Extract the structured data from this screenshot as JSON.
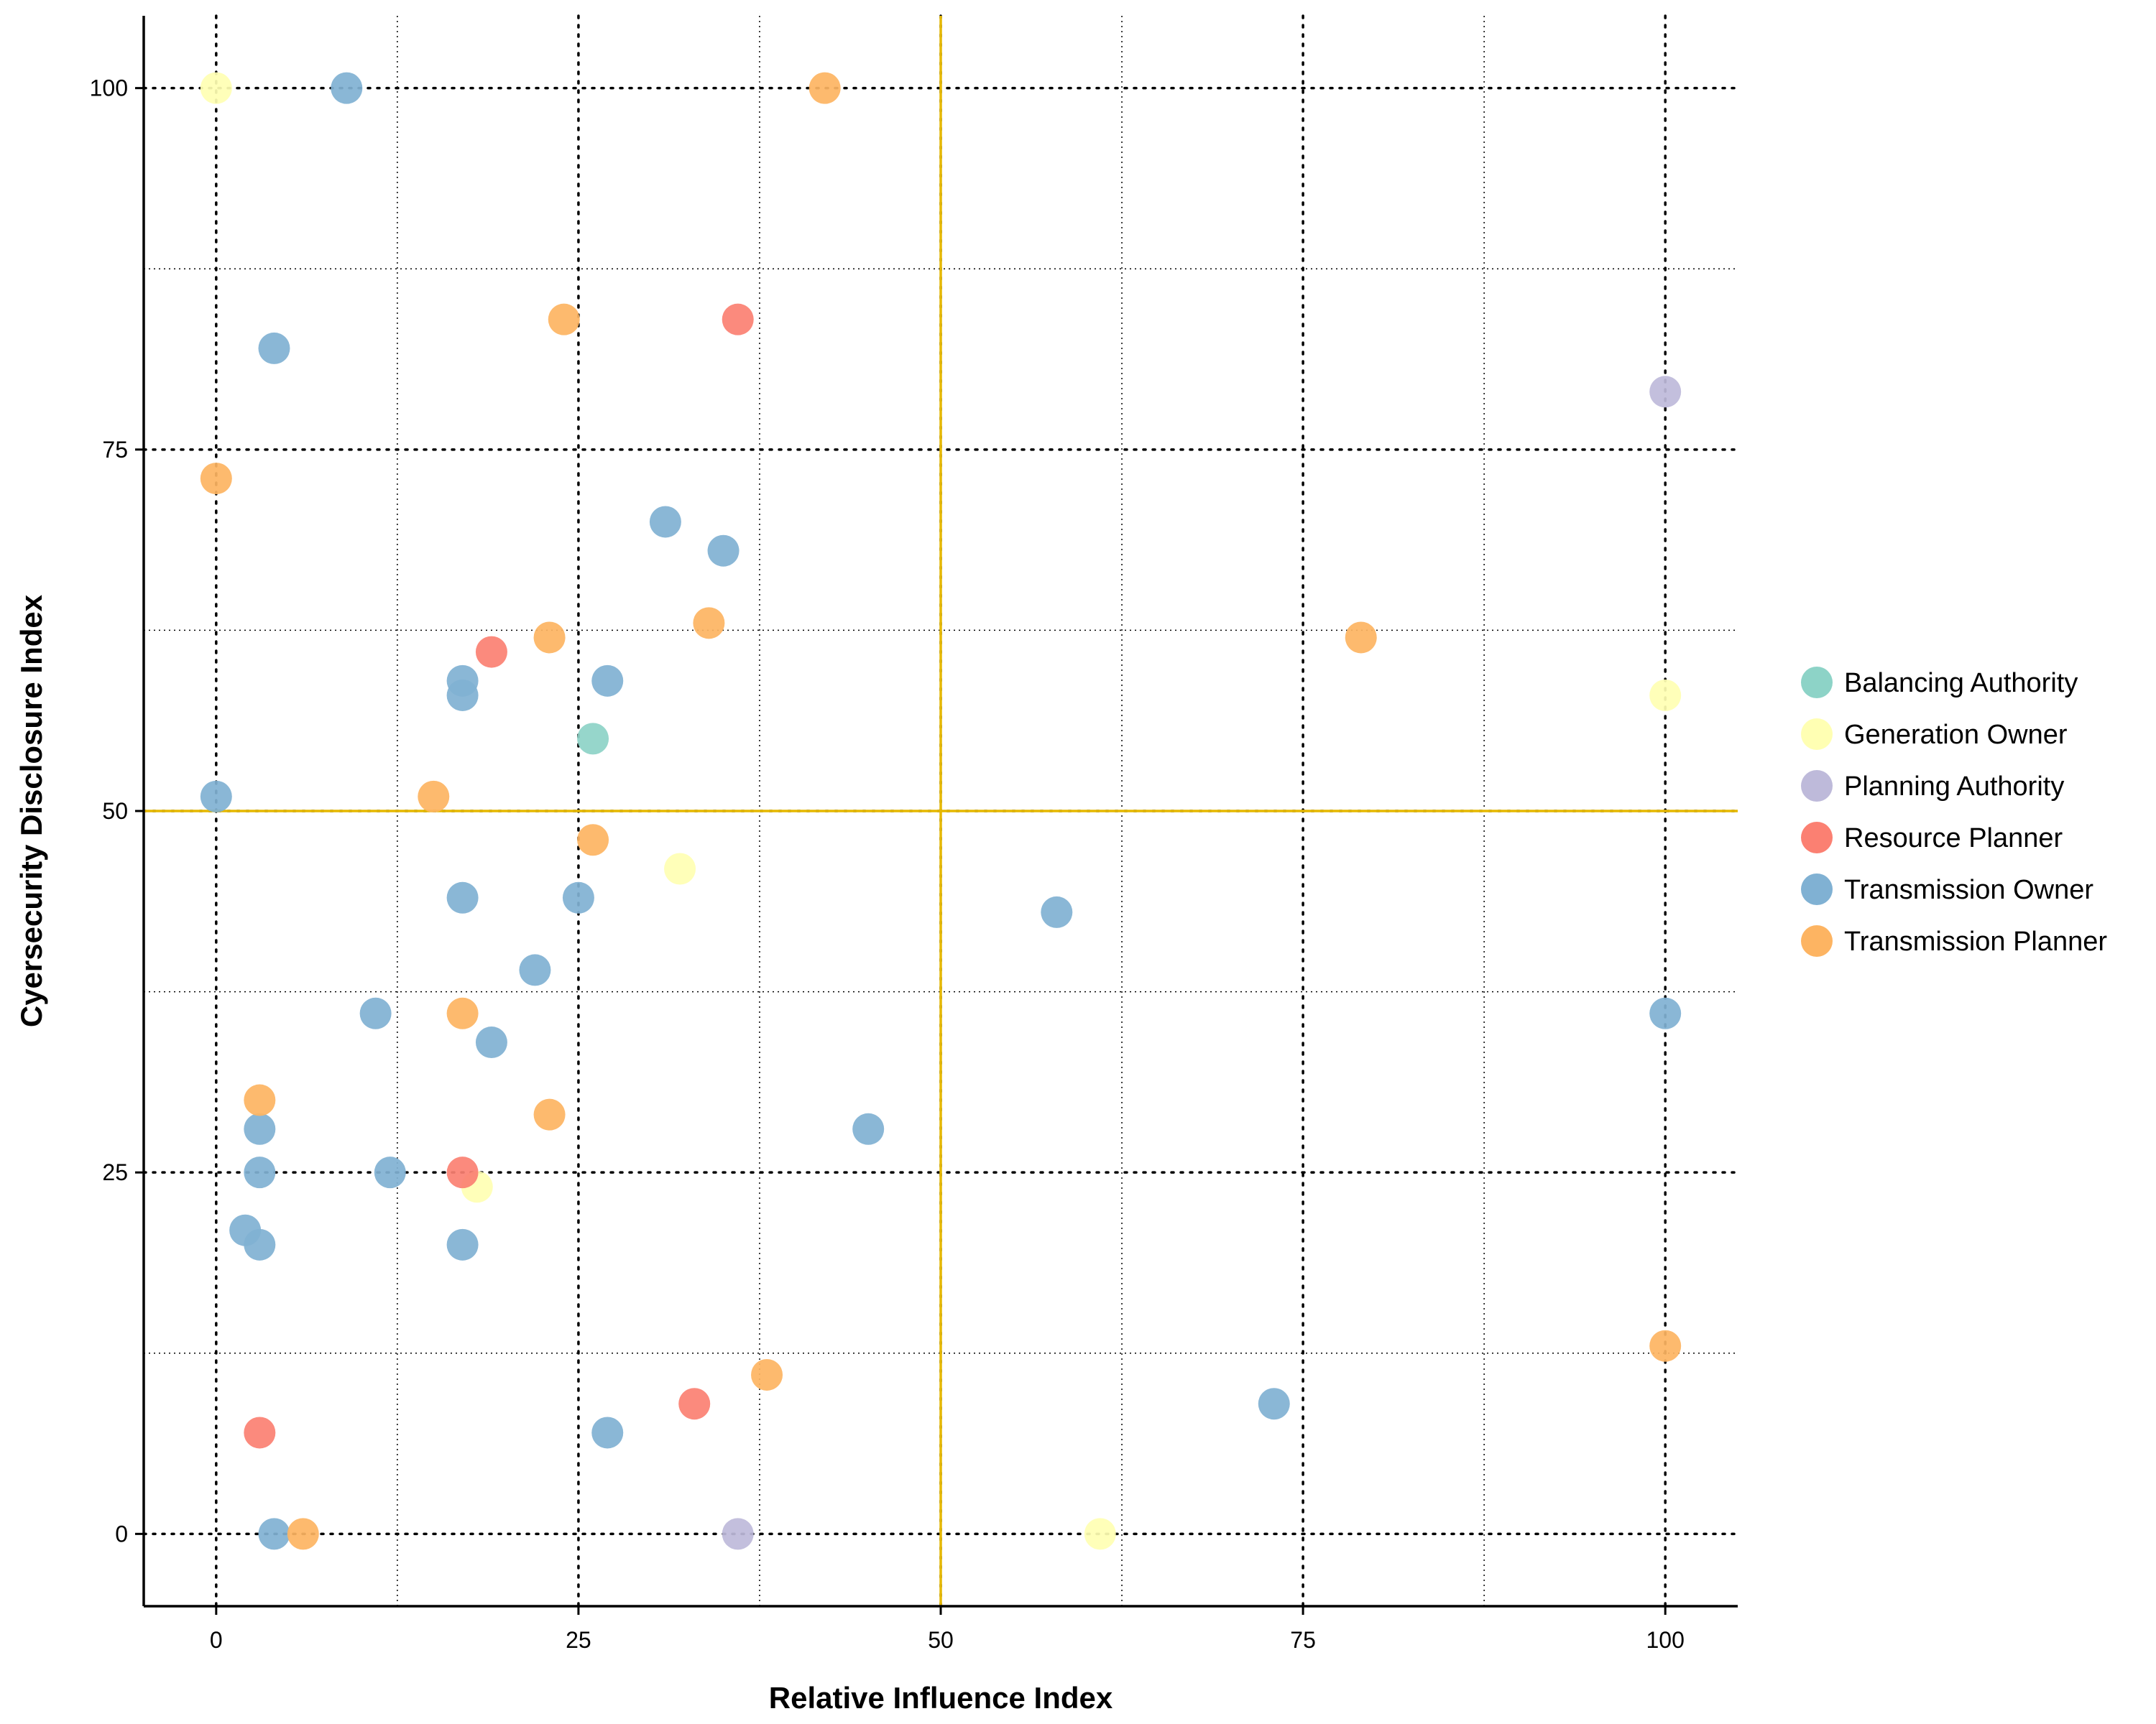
{
  "chart_data": {
    "type": "scatter",
    "xlabel": "Relative Influence Index",
    "ylabel": "Cyersecurity Disclosure Index",
    "xlim": [
      -5,
      105
    ],
    "ylim": [
      -5,
      105
    ],
    "x_ticks": [
      0,
      25,
      50,
      75,
      100
    ],
    "y_ticks": [
      0,
      25,
      50,
      75,
      100
    ],
    "x_tick_labels": [
      "0",
      "25",
      "50",
      "75",
      "100"
    ],
    "y_tick_labels": [
      "0",
      "25",
      "50",
      "75",
      "100"
    ],
    "grid": true,
    "legend_position": "right",
    "reference_lines": {
      "x": 50,
      "y": 50,
      "color": "#e6b800"
    },
    "series": [
      {
        "name": "Balancing Authority",
        "color": "#8dd3c7",
        "points": [
          [
            26,
            55
          ]
        ]
      },
      {
        "name": "Generation Owner",
        "color": "#ffffb3",
        "points": [
          [
            0,
            100
          ],
          [
            100,
            58
          ],
          [
            32,
            46
          ],
          [
            18,
            24
          ],
          [
            61,
            0
          ]
        ]
      },
      {
        "name": "Planning Authority",
        "color": "#bebada",
        "points": [
          [
            100,
            79
          ],
          [
            36,
            0
          ]
        ]
      },
      {
        "name": "Resource Planner",
        "color": "#fb8072",
        "points": [
          [
            36,
            84
          ],
          [
            19,
            61
          ],
          [
            17,
            25
          ],
          [
            33,
            9
          ],
          [
            3,
            7
          ]
        ]
      },
      {
        "name": "Transmission Owner",
        "color": "#80b1d3",
        "points": [
          [
            9,
            100
          ],
          [
            4,
            82
          ],
          [
            31,
            70
          ],
          [
            35,
            68
          ],
          [
            17,
            59
          ],
          [
            27,
            59
          ],
          [
            17,
            58
          ],
          [
            0,
            51
          ],
          [
            17,
            44
          ],
          [
            25,
            44
          ],
          [
            58,
            43
          ],
          [
            22,
            39
          ],
          [
            11,
            36
          ],
          [
            100,
            36
          ],
          [
            19,
            34
          ],
          [
            3,
            28
          ],
          [
            45,
            28
          ],
          [
            3,
            25
          ],
          [
            12,
            25
          ],
          [
            2,
            21
          ],
          [
            3,
            20
          ],
          [
            17,
            20
          ],
          [
            73,
            9
          ],
          [
            27,
            7
          ],
          [
            4,
            0
          ]
        ]
      },
      {
        "name": "Transmission Planner",
        "color": "#fdb462",
        "points": [
          [
            42,
            100
          ],
          [
            24,
            84
          ],
          [
            0,
            73
          ],
          [
            34,
            63
          ],
          [
            23,
            62
          ],
          [
            79,
            62
          ],
          [
            15,
            51
          ],
          [
            26,
            48
          ],
          [
            17,
            36
          ],
          [
            3,
            30
          ],
          [
            23,
            29
          ],
          [
            100,
            13
          ],
          [
            38,
            11
          ],
          [
            6,
            0
          ]
        ]
      }
    ]
  }
}
